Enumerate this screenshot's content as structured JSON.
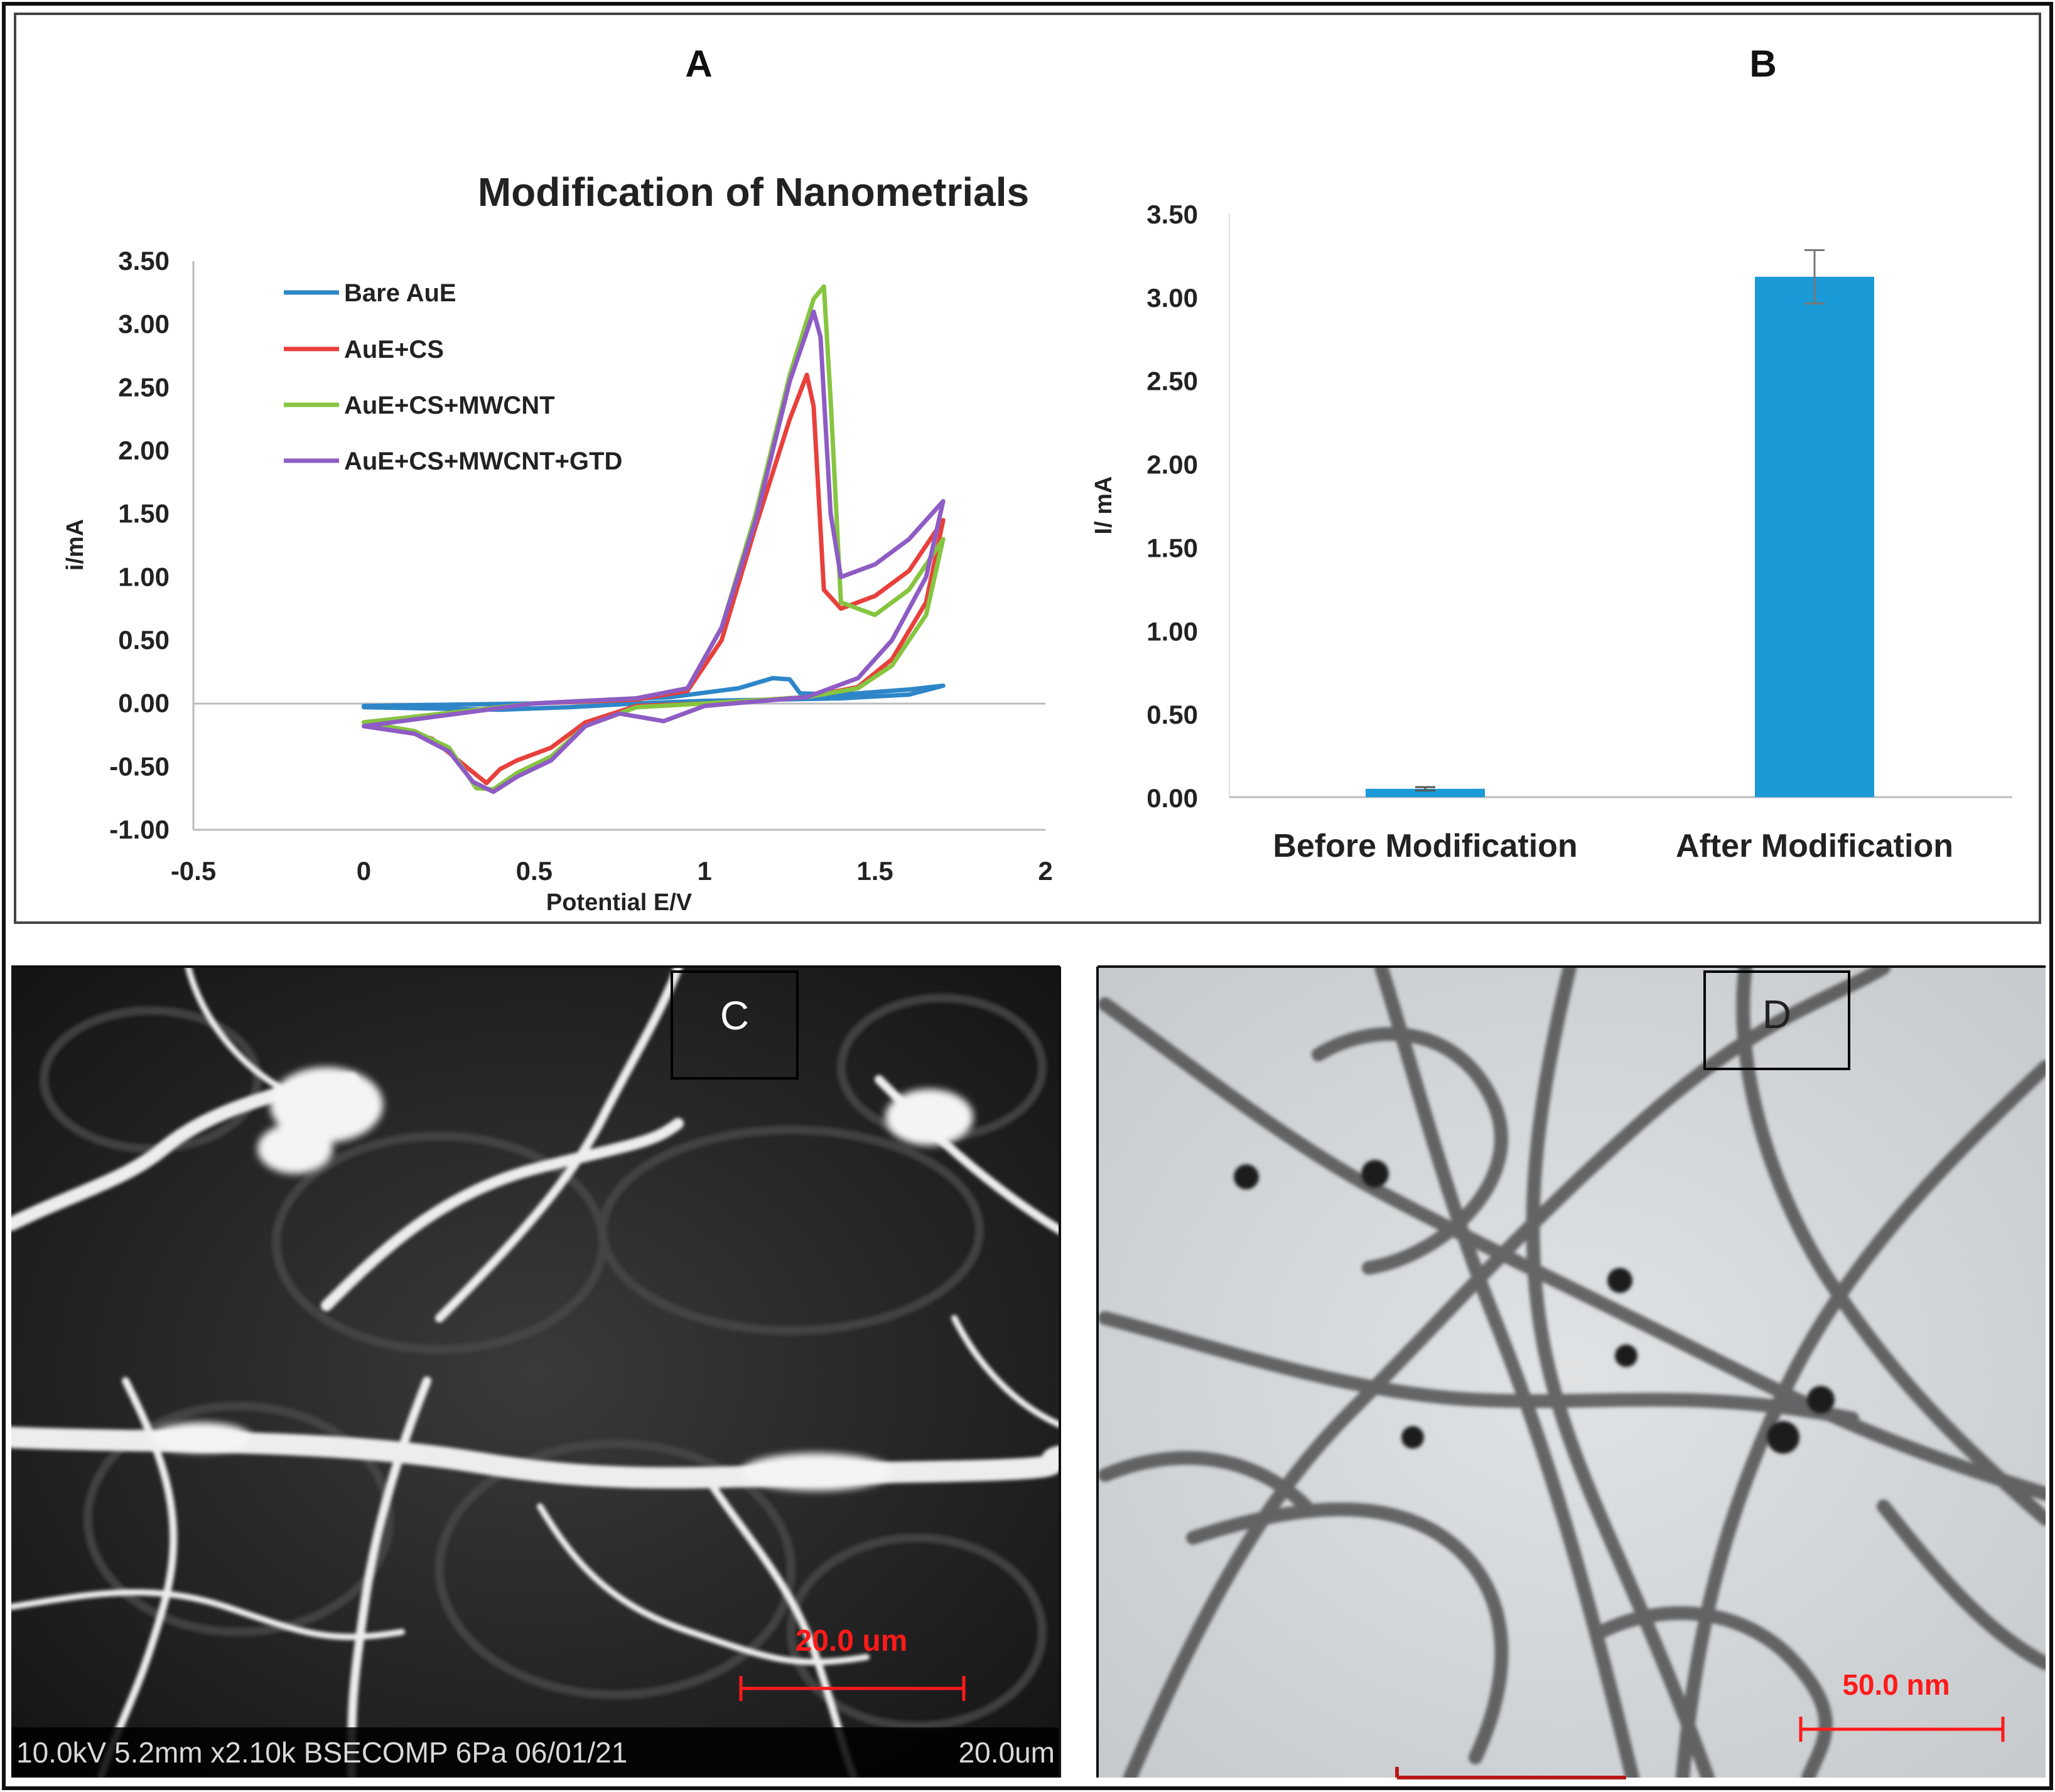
{
  "panels": {
    "A": {
      "label": "A"
    },
    "B": {
      "label": "B"
    },
    "C": {
      "label": "C",
      "scale_bar": "20.0 um",
      "info_bar": "10.0kV 5.2mm x2.10k BSECOMP 6Pa 06/01/21",
      "info_scale": "20.0um"
    },
    "D": {
      "label": "D",
      "scale_bar": "50.0 nm"
    }
  },
  "colors": {
    "bare": "#2e86c9",
    "cs": "#e8403c",
    "mwcnt": "#86c540",
    "gtd": "#8e5cc4",
    "bar": "#1a9ad6",
    "scale_red": "#ff1a1a"
  },
  "chart_data": [
    {
      "type": "line",
      "title": "Modification of Nanometrials",
      "xlabel": "Potential E/V",
      "ylabel": "i/mA",
      "xlim": [
        -0.5,
        2
      ],
      "ylim": [
        -1.0,
        3.5
      ],
      "xticks": [
        "-0.5",
        "0",
        "0.5",
        "1",
        "1.5",
        "2"
      ],
      "yticks": [
        "3.50",
        "3.00",
        "2.50",
        "2.00",
        "1.50",
        "1.00",
        "0.50",
        "0.00",
        "-0.50",
        "-1.00"
      ],
      "series": [
        {
          "name": "Bare AuE",
          "color": "#2e86c9",
          "points": [
            [
              0,
              -0.02
            ],
            [
              0.5,
              0.0
            ],
            [
              0.9,
              0.05
            ],
            [
              1.1,
              0.12
            ],
            [
              1.2,
              0.2
            ],
            [
              1.25,
              0.19
            ],
            [
              1.28,
              0.08
            ],
            [
              1.4,
              0.07
            ],
            [
              1.6,
              0.11
            ],
            [
              1.7,
              0.14
            ],
            [
              1.6,
              0.07
            ],
            [
              1.4,
              0.04
            ],
            [
              1.2,
              0.03
            ],
            [
              1.0,
              0.02
            ],
            [
              0.8,
              0.0
            ],
            [
              0.6,
              -0.03
            ],
            [
              0.4,
              -0.05
            ],
            [
              0.2,
              -0.04
            ],
            [
              0,
              -0.03
            ]
          ]
        },
        {
          "name": "AuE+CS",
          "color": "#e8403c",
          "points": [
            [
              0,
              -0.15
            ],
            [
              0.5,
              0.0
            ],
            [
              0.8,
              0.03
            ],
            [
              0.95,
              0.1
            ],
            [
              1.05,
              0.5
            ],
            [
              1.15,
              1.4
            ],
            [
              1.25,
              2.25
            ],
            [
              1.3,
              2.6
            ],
            [
              1.32,
              2.35
            ],
            [
              1.35,
              0.9
            ],
            [
              1.4,
              0.75
            ],
            [
              1.5,
              0.85
            ],
            [
              1.6,
              1.05
            ],
            [
              1.7,
              1.45
            ],
            [
              1.65,
              0.8
            ],
            [
              1.55,
              0.35
            ],
            [
              1.45,
              0.13
            ],
            [
              1.3,
              0.05
            ],
            [
              1.0,
              0.0
            ],
            [
              0.8,
              -0.02
            ],
            [
              0.65,
              -0.15
            ],
            [
              0.55,
              -0.35
            ],
            [
              0.45,
              -0.45
            ],
            [
              0.4,
              -0.52
            ],
            [
              0.36,
              -0.63
            ],
            [
              0.3,
              -0.5
            ],
            [
              0.2,
              -0.28
            ],
            [
              0.1,
              -0.2
            ],
            [
              0,
              -0.15
            ]
          ]
        },
        {
          "name": "AuE+CS+MWCNT",
          "color": "#86c540",
          "points": [
            [
              0,
              -0.15
            ],
            [
              0.5,
              0.0
            ],
            [
              0.8,
              0.04
            ],
            [
              0.95,
              0.12
            ],
            [
              1.05,
              0.6
            ],
            [
              1.15,
              1.5
            ],
            [
              1.25,
              2.6
            ],
            [
              1.32,
              3.2
            ],
            [
              1.35,
              3.3
            ],
            [
              1.37,
              2.4
            ],
            [
              1.4,
              0.8
            ],
            [
              1.5,
              0.7
            ],
            [
              1.6,
              0.9
            ],
            [
              1.7,
              1.3
            ],
            [
              1.65,
              0.7
            ],
            [
              1.55,
              0.3
            ],
            [
              1.45,
              0.12
            ],
            [
              1.3,
              0.05
            ],
            [
              1.0,
              0.0
            ],
            [
              0.8,
              -0.03
            ],
            [
              0.65,
              -0.18
            ],
            [
              0.55,
              -0.42
            ],
            [
              0.45,
              -0.55
            ],
            [
              0.38,
              -0.68
            ],
            [
              0.33,
              -0.67
            ],
            [
              0.25,
              -0.35
            ],
            [
              0.15,
              -0.22
            ],
            [
              0,
              -0.15
            ]
          ]
        },
        {
          "name": "AuE+CS+MWCNT+GTD",
          "color": "#8e5cc4",
          "points": [
            [
              0,
              -0.18
            ],
            [
              0.5,
              0.0
            ],
            [
              0.8,
              0.04
            ],
            [
              0.95,
              0.12
            ],
            [
              1.05,
              0.6
            ],
            [
              1.15,
              1.45
            ],
            [
              1.25,
              2.55
            ],
            [
              1.32,
              3.1
            ],
            [
              1.34,
              2.9
            ],
            [
              1.37,
              1.5
            ],
            [
              1.4,
              1.0
            ],
            [
              1.5,
              1.1
            ],
            [
              1.6,
              1.3
            ],
            [
              1.7,
              1.6
            ],
            [
              1.65,
              1.0
            ],
            [
              1.55,
              0.5
            ],
            [
              1.45,
              0.2
            ],
            [
              1.3,
              0.05
            ],
            [
              1.0,
              -0.02
            ],
            [
              0.88,
              -0.14
            ],
            [
              0.75,
              -0.08
            ],
            [
              0.65,
              -0.18
            ],
            [
              0.55,
              -0.45
            ],
            [
              0.45,
              -0.58
            ],
            [
              0.38,
              -0.7
            ],
            [
              0.32,
              -0.62
            ],
            [
              0.25,
              -0.38
            ],
            [
              0.15,
              -0.24
            ],
            [
              0,
              -0.18
            ]
          ]
        }
      ]
    },
    {
      "type": "bar",
      "ylabel": "I/ mA",
      "ylim": [
        0,
        3.5
      ],
      "yticks": [
        "3.50",
        "3.00",
        "2.50",
        "2.00",
        "1.50",
        "1.00",
        "0.50",
        "0.00"
      ],
      "categories": [
        "Before Modification",
        "After Modification"
      ],
      "values": [
        0.05,
        3.12
      ],
      "errors": [
        0.01,
        0.16
      ]
    }
  ]
}
